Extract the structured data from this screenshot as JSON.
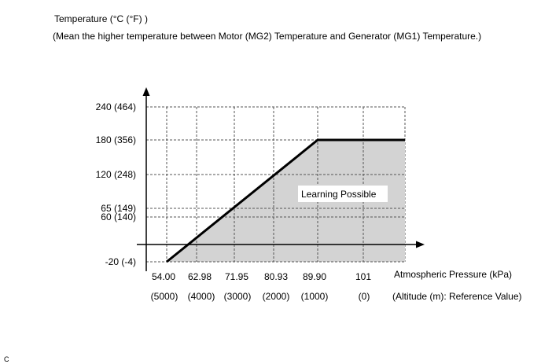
{
  "chart_data": {
    "type": "area",
    "title": "Temperature (°C (°F) )",
    "subtitle": "(Mean the higher temperature between Motor (MG2) Temperature and Generator (MG1) Temperature.)",
    "xlabel": "Atmospheric Pressure (kPa)",
    "xlabel2": "(Altitude (m): Reference Value)",
    "x_ticks": [
      {
        "value": 54.0,
        "label": "54.00",
        "altitude": "(5000)"
      },
      {
        "value": 62.98,
        "label": "62.98",
        "altitude": "(4000)"
      },
      {
        "value": 71.95,
        "label": "71.95",
        "altitude": "(3000)"
      },
      {
        "value": 80.93,
        "label": "80.93",
        "altitude": "(2000)"
      },
      {
        "value": 89.9,
        "label": "89.90",
        "altitude": "(1000)"
      },
      {
        "value": 101,
        "label": "101",
        "altitude": "(0)"
      }
    ],
    "y_ticks": [
      {
        "value": 240,
        "label": "240 (464)"
      },
      {
        "value": 180,
        "label": "180 (356)"
      },
      {
        "value": 120,
        "label": "120 (248)"
      },
      {
        "value": 65,
        "label": "65 (149)"
      },
      {
        "value": 60,
        "label": "60 (140)"
      },
      {
        "value": -20,
        "label": "-20 (-4)"
      }
    ],
    "series": [
      {
        "points": [
          {
            "x": 54.0,
            "y": -20
          },
          {
            "x": 89.9,
            "y": 180
          },
          {
            "x": 101,
            "y": 180
          }
        ]
      }
    ],
    "region_label": "Learning Possible",
    "grid": true,
    "fill_color": "#d3d3d3",
    "line_color": "#000000"
  },
  "figure_code": "C"
}
